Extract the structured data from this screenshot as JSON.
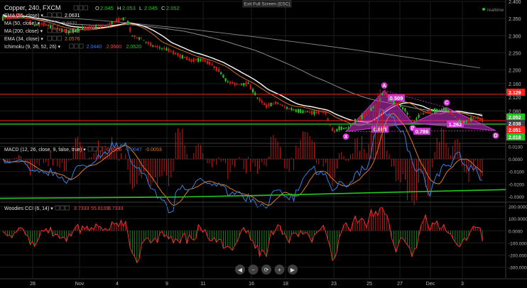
{
  "exit_fullscreen": "Exit Full Screen (ESC)",
  "status": "realtime",
  "colors": {
    "bg": "#000000",
    "grid": "#1c1c1c",
    "up": "#22c322",
    "down": "#d01818",
    "ema55": "#ffffff",
    "ma50": "#555555",
    "ma200": "#9a9a9a",
    "ema34": "#e07828",
    "red_line": "#ff2020",
    "green_line": "#20d020",
    "pattern": "#cc33cc",
    "macd": "#3a7fe0",
    "signal": "#e07828",
    "macd_green": "#20c820"
  },
  "legend": {
    "symbol": "Copper, 240, FXCM",
    "ohlc": [
      {
        "label": "O",
        "value": "2.045"
      },
      {
        "label": "H",
        "value": "2.053"
      },
      {
        "label": "L",
        "value": "2.045"
      },
      {
        "label": "C",
        "value": "2.052"
      }
    ],
    "indicators": [
      {
        "name": "EMA (55, close)",
        "v1": "2.0631",
        "v2": "",
        "v3": ""
      },
      {
        "name": "MA (50, close)",
        "v1": "2.0631",
        "v2": "",
        "v3": ""
      },
      {
        "name": "MA (200, close)",
        "v1": "2.2048",
        "v2": "",
        "v3": ""
      },
      {
        "name": "EMA (34, close)",
        "v1": "2.0576",
        "v2": "",
        "v3": ""
      },
      {
        "name": "Ichimoku (9, 26, 52, 26)",
        "v1": "2.0440",
        "v2": "2.0560",
        "v3": "2.0520"
      }
    ]
  },
  "macd_legend": {
    "name": "MACD (12, 26, close, 9, false, true)",
    "v1": "0.0006",
    "v2": "-0.0047",
    "v3": "-0.0053"
  },
  "cci_legend": {
    "name": "Woodies CCI (6, 14)",
    "v1": "3.7333",
    "v2": "55.6109",
    "v3": "3.7333"
  },
  "chart_data": {
    "type": "candlestick",
    "ylim": [
      1.99,
      2.4
    ],
    "y_ticks": [
      "2.400",
      "2.350",
      "2.300",
      "2.250",
      "2.200",
      "2.160",
      "2.120",
      "2.080",
      "2.040",
      "2.000"
    ],
    "price_badges": [
      {
        "text": "2.129",
        "value": 2.129,
        "color": "#ff2020"
      },
      {
        "text": "2.052",
        "value": 2.052,
        "color": "#22c322"
      },
      {
        "text": "2.038",
        "value": 2.038,
        "color": "#404040"
      },
      {
        "text": "2.051",
        "value": 2.051,
        "color": "#ff2020"
      },
      {
        "text": "2.018",
        "value": 2.018,
        "color": "#22c322"
      }
    ],
    "x_labels": [
      "28",
      "Nov",
      "4",
      "9",
      "11",
      "16",
      "18",
      "23",
      "25",
      "27",
      "Dec",
      "3"
    ],
    "red_levels": [
      2.129,
      2.052
    ],
    "green_level": 2.042,
    "pattern_points": [
      {
        "label": "X",
        "value": 2.02
      },
      {
        "label": "A",
        "value": 2.14
      },
      {
        "label": "B",
        "value": 2.045
      },
      {
        "label": "C",
        "value": 2.09
      },
      {
        "label": "D",
        "value": 2.023
      }
    ],
    "ratios": [
      "0.509",
      "0.693",
      "0.786",
      "1.262"
    ],
    "macd": {
      "ylim": [
        -0.034,
        0.012
      ],
      "ticks": [
        "0.0100",
        "0.0000",
        "-0.0100",
        "-0.0200",
        "-0.0300"
      ]
    },
    "cci": {
      "ylim": [
        -390,
        230
      ],
      "ticks": [
        "200.0000",
        "100.0000",
        "0.0000",
        "-100.0000",
        "-200.0000",
        "-300.0000"
      ]
    }
  },
  "nav_buttons": [
    "◀",
    "−",
    "⟳",
    "+",
    "▶"
  ]
}
